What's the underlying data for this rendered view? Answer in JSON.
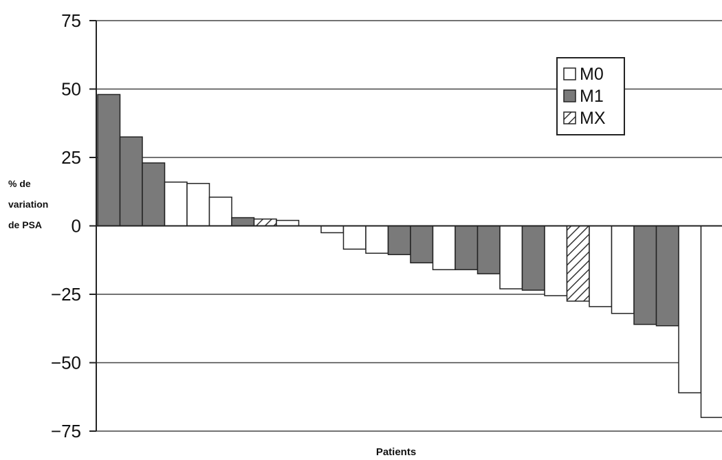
{
  "chart_data": {
    "type": "bar",
    "title": "",
    "ylabel": "% de variation de PSA",
    "ylabel_lines": [
      "% de",
      "variation",
      "de PSA"
    ],
    "xlabel": "Patients",
    "ylim": [
      -75,
      75
    ],
    "yticks": [
      75,
      50,
      25,
      0,
      -25,
      -50,
      -75
    ],
    "ytick_labels": [
      "75",
      "50",
      "25",
      "0",
      "−25",
      "−50",
      "−75"
    ],
    "grid": true,
    "legend_position": "top-right",
    "series": [
      {
        "name": "M0",
        "key": "M0",
        "color": "#ffffff",
        "pattern": "none"
      },
      {
        "name": "M1",
        "key": "M1",
        "color": "#7a7a7a",
        "pattern": "none"
      },
      {
        "name": "MX",
        "key": "MX",
        "color": "#ffffff",
        "pattern": "hatch"
      }
    ],
    "bars": [
      {
        "value": 48,
        "group": "M1"
      },
      {
        "value": 32.5,
        "group": "M1"
      },
      {
        "value": 23,
        "group": "M1"
      },
      {
        "value": 16,
        "group": "M0"
      },
      {
        "value": 15.5,
        "group": "M0"
      },
      {
        "value": 10.5,
        "group": "M0"
      },
      {
        "value": 3,
        "group": "M1"
      },
      {
        "value": 2.5,
        "group": "MX"
      },
      {
        "value": 2,
        "group": "M0"
      },
      {
        "value": 0,
        "group": "M0"
      },
      {
        "value": -2.5,
        "group": "M0"
      },
      {
        "value": -8.5,
        "group": "M0"
      },
      {
        "value": -10,
        "group": "M0"
      },
      {
        "value": -10.5,
        "group": "M1"
      },
      {
        "value": -13.5,
        "group": "M1"
      },
      {
        "value": -16,
        "group": "M0"
      },
      {
        "value": -16,
        "group": "M1"
      },
      {
        "value": -17.5,
        "group": "M1"
      },
      {
        "value": -23,
        "group": "M0"
      },
      {
        "value": -23.5,
        "group": "M1"
      },
      {
        "value": -25.5,
        "group": "M0"
      },
      {
        "value": -27.5,
        "group": "MX"
      },
      {
        "value": -29.5,
        "group": "M0"
      },
      {
        "value": -32,
        "group": "M0"
      },
      {
        "value": -36,
        "group": "M1"
      },
      {
        "value": -36.5,
        "group": "M1"
      },
      {
        "value": -61,
        "group": "M0"
      },
      {
        "value": -70,
        "group": "M0"
      }
    ]
  }
}
